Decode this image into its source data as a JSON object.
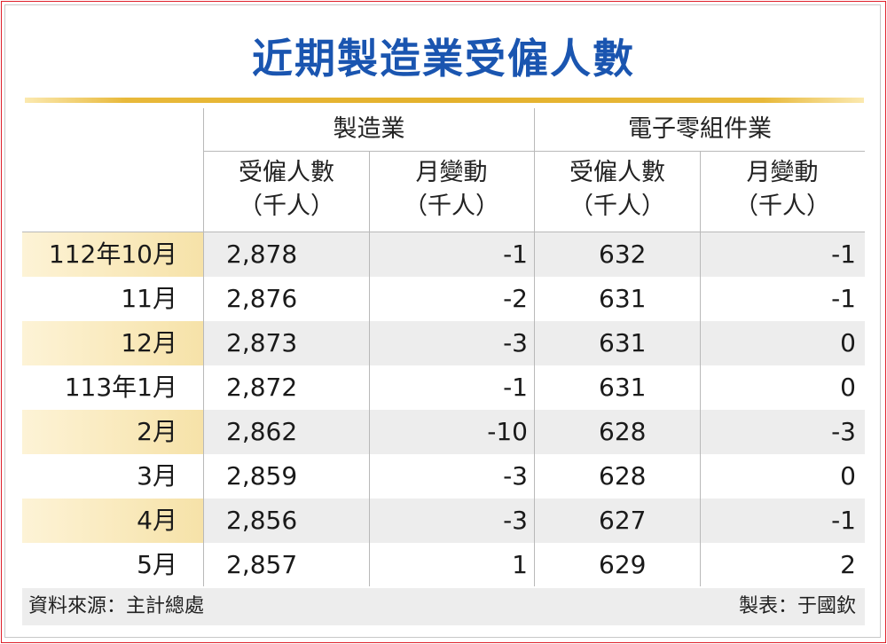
{
  "title": "近期製造業受僱人數",
  "chart_data": {
    "type": "table",
    "title": "近期製造業受僱人數",
    "groups": [
      "製造業",
      "電子零組件業"
    ],
    "columns": [
      {
        "label": "受僱人數",
        "unit": "（千人）"
      },
      {
        "label": "月變動",
        "unit": "（千人）"
      },
      {
        "label": "受僱人數",
        "unit": "（千人）"
      },
      {
        "label": "月變動",
        "unit": "（千人）"
      }
    ],
    "rows": [
      {
        "month": "112年10月",
        "mfg_emp": "2,878",
        "mfg_chg": "-1",
        "ele_emp": "632",
        "ele_chg": "-1"
      },
      {
        "month": "11月",
        "mfg_emp": "2,876",
        "mfg_chg": "-2",
        "ele_emp": "631",
        "ele_chg": "-1"
      },
      {
        "month": "12月",
        "mfg_emp": "2,873",
        "mfg_chg": "-3",
        "ele_emp": "631",
        "ele_chg": "0"
      },
      {
        "month": "113年1月",
        "mfg_emp": "2,872",
        "mfg_chg": "-1",
        "ele_emp": "631",
        "ele_chg": "0"
      },
      {
        "month": "2月",
        "mfg_emp": "2,862",
        "mfg_chg": "-10",
        "ele_emp": "628",
        "ele_chg": "-3"
      },
      {
        "month": "3月",
        "mfg_emp": "2,859",
        "mfg_chg": "-3",
        "ele_emp": "628",
        "ele_chg": "0"
      },
      {
        "month": "4月",
        "mfg_emp": "2,856",
        "mfg_chg": "-3",
        "ele_emp": "627",
        "ele_chg": "-1"
      },
      {
        "month": "5月",
        "mfg_emp": "2,857",
        "mfg_chg": "1",
        "ele_emp": "629",
        "ele_chg": "2"
      }
    ]
  },
  "footer": {
    "source": "資料來源：主計總處",
    "author": "製表：于國欽"
  },
  "colors": {
    "title": "#1a55b0",
    "border": "#e0202a",
    "rule": "#e4b12c",
    "stripe": "#ededed"
  }
}
